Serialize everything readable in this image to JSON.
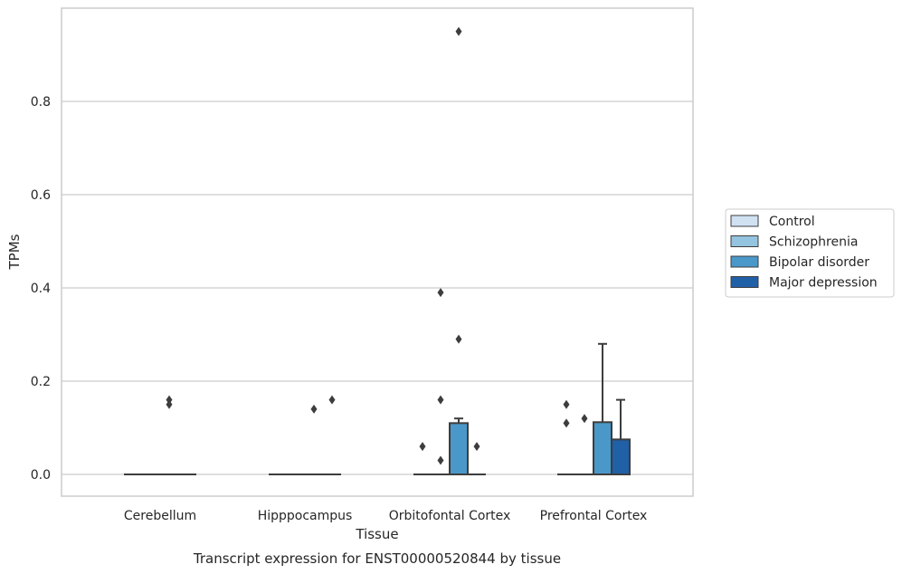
{
  "chart_data": {
    "type": "box",
    "xlabel": "Tissue",
    "ylabel": "TPMs",
    "caption": "Transcript expression for ENST00000520844 by tissue",
    "categories": [
      "Cerebellum",
      "Hipppocampus",
      "Orbitofontal Cortex",
      "Prefrontal Cortex"
    ],
    "ylim": [
      -0.045,
      1.0
    ],
    "yticks": [
      0.0,
      0.2,
      0.4,
      0.6,
      0.8
    ],
    "ytick_labels": [
      "0.0",
      "0.2",
      "0.4",
      "0.6",
      "0.8"
    ],
    "grid": "horizontal",
    "legend_position": "right",
    "series": [
      {
        "name": "Control",
        "color": "#d0e1f2",
        "boxes": [
          {
            "q1": 0,
            "median": 0,
            "q3": 0,
            "whisker_low": 0,
            "whisker_high": 0,
            "outliers": []
          },
          {
            "q1": 0,
            "median": 0,
            "q3": 0,
            "whisker_low": 0,
            "whisker_high": 0,
            "outliers": []
          },
          {
            "q1": 0,
            "median": 0,
            "q3": 0,
            "whisker_low": 0,
            "whisker_high": 0,
            "outliers": [
              0.06
            ]
          },
          {
            "q1": 0,
            "median": 0,
            "q3": 0,
            "whisker_low": 0,
            "whisker_high": 0,
            "outliers": [
              0.15,
              0.11
            ]
          }
        ]
      },
      {
        "name": "Schizophrenia",
        "color": "#94c4df",
        "boxes": [
          {
            "q1": 0,
            "median": 0,
            "q3": 0,
            "whisker_low": 0,
            "whisker_high": 0,
            "outliers": []
          },
          {
            "q1": 0,
            "median": 0,
            "q3": 0,
            "whisker_low": 0,
            "whisker_high": 0,
            "outliers": []
          },
          {
            "q1": 0,
            "median": 0,
            "q3": 0,
            "whisker_low": 0,
            "whisker_high": 0,
            "outliers": [
              0.39,
              0.16,
              0.03
            ]
          },
          {
            "q1": 0,
            "median": 0,
            "q3": 0,
            "whisker_low": 0,
            "whisker_high": 0,
            "outliers": [
              0.12
            ]
          }
        ]
      },
      {
        "name": "Bipolar disorder",
        "color": "#4a98c9",
        "boxes": [
          {
            "q1": 0,
            "median": 0,
            "q3": 0,
            "whisker_low": 0,
            "whisker_high": 0,
            "outliers": [
              0.16,
              0.15
            ]
          },
          {
            "q1": 0,
            "median": 0,
            "q3": 0,
            "whisker_low": 0,
            "whisker_high": 0,
            "outliers": [
              0.14
            ]
          },
          {
            "q1": 0,
            "median": 0,
            "q3": 0.11,
            "whisker_low": 0,
            "whisker_high": 0.12,
            "outliers": [
              0.95,
              0.29
            ]
          },
          {
            "q1": 0,
            "median": 0,
            "q3": 0.112,
            "whisker_low": 0,
            "whisker_high": 0.28,
            "outliers": []
          }
        ]
      },
      {
        "name": "Major depression",
        "color": "#2060a7",
        "boxes": [
          {
            "q1": 0,
            "median": 0,
            "q3": 0,
            "whisker_low": 0,
            "whisker_high": 0,
            "outliers": []
          },
          {
            "q1": 0,
            "median": 0,
            "q3": 0,
            "whisker_low": 0,
            "whisker_high": 0,
            "outliers": [
              0.16
            ]
          },
          {
            "q1": 0,
            "median": 0,
            "q3": 0,
            "whisker_low": 0,
            "whisker_high": 0,
            "outliers": [
              0.06
            ]
          },
          {
            "q1": 0,
            "median": 0,
            "q3": 0.075,
            "whisker_low": 0,
            "whisker_high": 0.16,
            "outliers": []
          }
        ]
      }
    ]
  }
}
